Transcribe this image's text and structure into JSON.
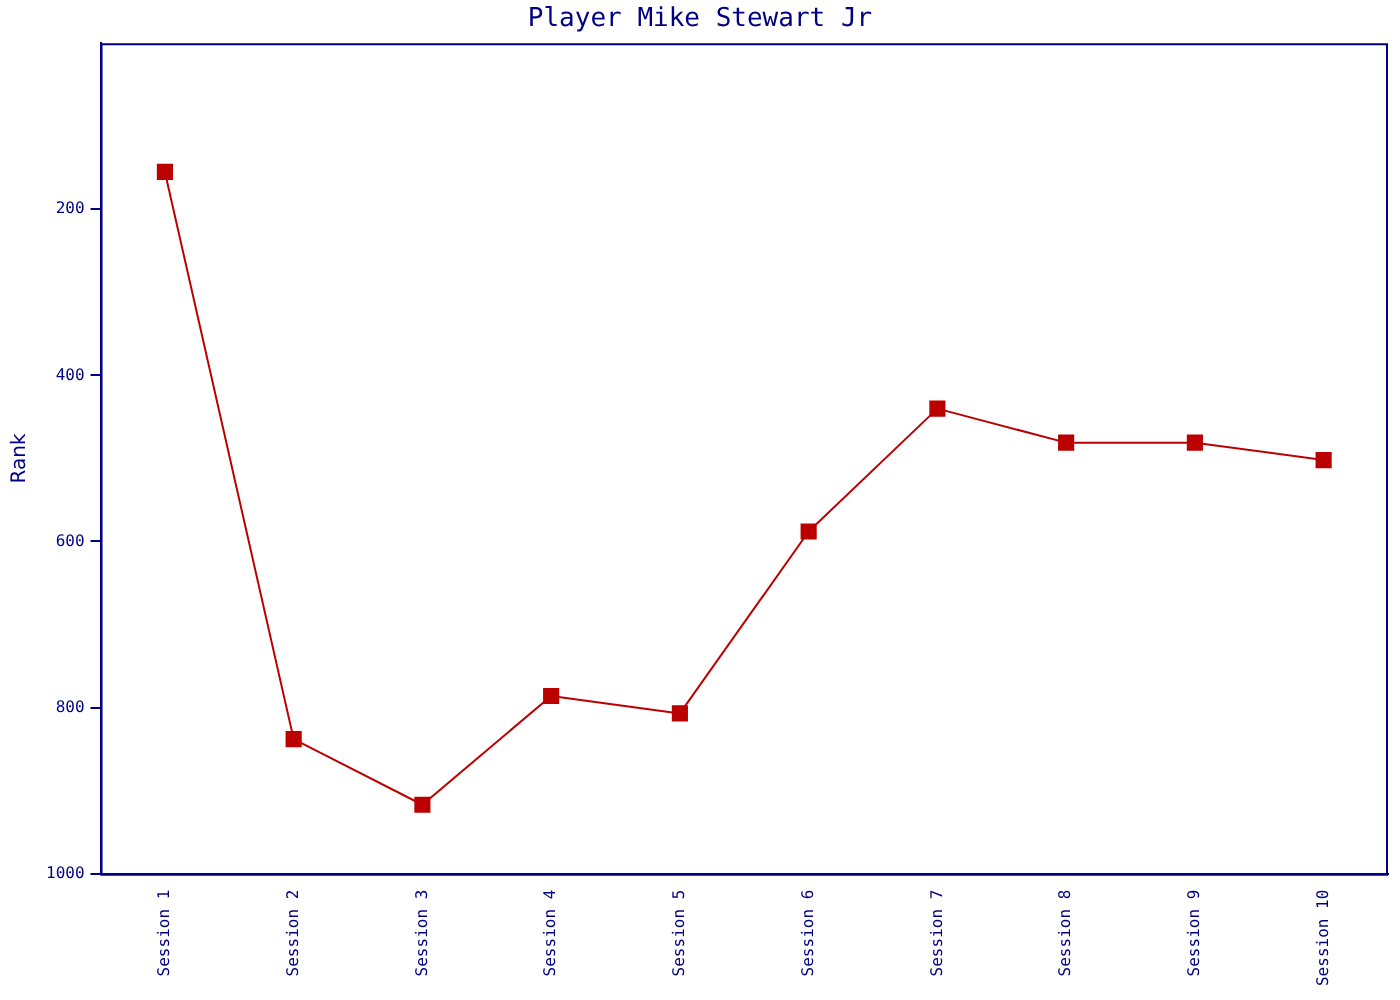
{
  "chart_data": {
    "type": "line",
    "title": "Player Mike Stewart Jr",
    "ylabel": "Rank",
    "categories": [
      "Session 1",
      "Session 2",
      "Session 3",
      "Session 4",
      "Session 5",
      "Session 6",
      "Session 7",
      "Session 8",
      "Session 9",
      "Session 10"
    ],
    "series": [
      {
        "color": "#bb0000",
        "values": [
          155,
          838,
          917,
          786,
          807,
          588,
          440,
          481,
          481,
          502
        ]
      }
    ],
    "ylim": [
      1000,
      0
    ],
    "yticks": [
      200,
      400,
      600,
      800,
      1000
    ],
    "grid": false,
    "legend": false,
    "marker": "square",
    "line_style": "solid"
  }
}
